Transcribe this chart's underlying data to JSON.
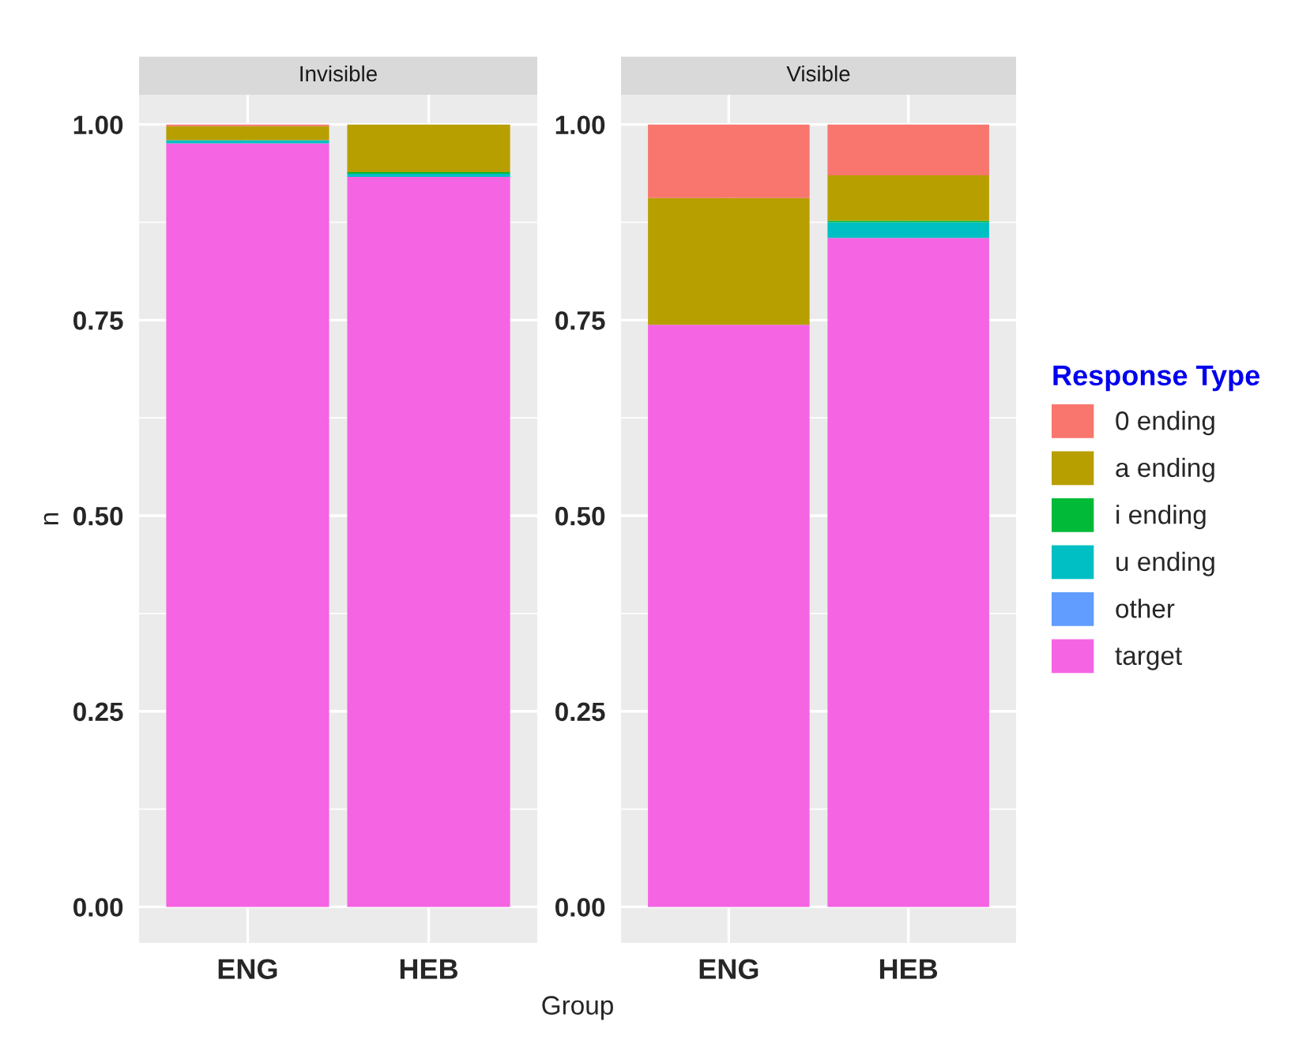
{
  "chart_data": [
    {
      "type": "bar",
      "stacked": true,
      "title": "Invisible",
      "ylabel": "n",
      "xlabel": "Group",
      "categories": [
        "ENG",
        "HEB"
      ],
      "ylim": [
        -0.046,
        1.038
      ],
      "yticks": [
        {
          "value": 0,
          "label": "0.00"
        },
        {
          "value": 0.25,
          "label": "0.25"
        },
        {
          "value": 0.5,
          "label": "0.50"
        },
        {
          "value": 0.75,
          "label": "0.75"
        },
        {
          "value": 1,
          "label": "1.00"
        }
      ],
      "grid": true,
      "series": [
        {
          "color": "#f564e3",
          "values": [
            0.976,
            0.933
          ]
        },
        {
          "color": "#619cff",
          "values": [
            0,
            0
          ]
        },
        {
          "color": "#00bfc4",
          "values": [
            0.004,
            0.004
          ]
        },
        {
          "color": "#00ba38",
          "values": [
            0,
            0.002
          ]
        },
        {
          "color": "#b79f00",
          "values": [
            0.018,
            0.061
          ]
        },
        {
          "color": "#f8766d",
          "values": [
            0.002,
            0
          ]
        }
      ]
    },
    {
      "type": "bar",
      "stacked": true,
      "title": "Visible",
      "legend_title": "Response Type",
      "categories": [
        "ENG",
        "HEB"
      ],
      "ylim": [
        -0.046,
        1.038
      ],
      "yticks": [
        {
          "value": 0,
          "label": "0.00"
        },
        {
          "value": 0.25,
          "label": "0.25"
        },
        {
          "value": 0.5,
          "label": "0.50"
        },
        {
          "value": 0.75,
          "label": "0.75"
        },
        {
          "value": 1,
          "label": "1.00"
        }
      ],
      "grid": true,
      "legend": "right",
      "series": [
        {
          "name": "target",
          "color": "#f564e3",
          "values": [
            0.744,
            0.855
          ]
        },
        {
          "name": "other",
          "color": "#619cff",
          "values": [
            0,
            0
          ]
        },
        {
          "name": "u ending",
          "color": "#00bfc4",
          "values": [
            0,
            0.02
          ]
        },
        {
          "name": "i ending",
          "color": "#00ba38",
          "values": [
            0,
            0.002
          ]
        },
        {
          "name": "a ending",
          "color": "#b79f00",
          "values": [
            0.162,
            0.058
          ]
        },
        {
          "name": "0 ending",
          "color": "#f8766d",
          "values": [
            0.094,
            0.065
          ]
        }
      ]
    }
  ]
}
